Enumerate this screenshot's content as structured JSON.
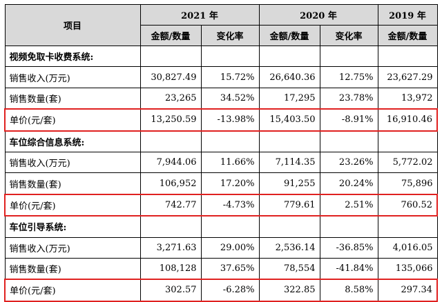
{
  "header": {
    "item_label": "项目",
    "years": [
      "2021 年",
      "2020 年",
      "2019 年"
    ],
    "sub": [
      "金额/数量",
      "变化率",
      "金额/数量",
      "变化率",
      "金额/数量"
    ]
  },
  "sections": [
    {
      "title": "视频免取卡收费系统:",
      "rows": [
        {
          "label": "销售收入(万元)",
          "values": [
            "30,827.49",
            "15.72%",
            "26,640.36",
            "12.75%",
            "23,627.29"
          ],
          "highlight": false
        },
        {
          "label": "销售数量(套)",
          "values": [
            "23,265",
            "34.52%",
            "17,295",
            "23.78%",
            "13,972"
          ],
          "highlight": false
        },
        {
          "label": "单价(元/套)",
          "values": [
            "13,250.59",
            "-13.98%",
            "15,403.50",
            "-8.91%",
            "16,910.46"
          ],
          "highlight": true
        }
      ]
    },
    {
      "title": "车位综合信息系统:",
      "rows": [
        {
          "label": "销售收入(万元)",
          "values": [
            "7,944.06",
            "11.66%",
            "7,114.35",
            "23.26%",
            "5,772.02"
          ],
          "highlight": false
        },
        {
          "label": "销售数量(套)",
          "values": [
            "106,952",
            "17.20%",
            "91,255",
            "20.24%",
            "75,896"
          ],
          "highlight": false
        },
        {
          "label": "单价(元/套)",
          "values": [
            "742.77",
            "-4.73%",
            "779.61",
            "2.51%",
            "760.52"
          ],
          "highlight": true
        }
      ]
    },
    {
      "title": "车位引导系统:",
      "rows": [
        {
          "label": "销售收入(万元)",
          "values": [
            "3,271.63",
            "29.00%",
            "2,536.14",
            "-36.85%",
            "4,016.05"
          ],
          "highlight": false
        },
        {
          "label": "销售数量(套)",
          "values": [
            "108,128",
            "37.65%",
            "78,554",
            "-41.84%",
            "135,066"
          ],
          "highlight": false
        },
        {
          "label": "单价(元/套)",
          "values": [
            "302.57",
            "-6.28%",
            "322.85",
            "8.58%",
            "297.34"
          ],
          "highlight": true
        }
      ]
    }
  ],
  "colors": {
    "highlight_border": "#e0201f",
    "header_bg": "#d9d9d9"
  }
}
